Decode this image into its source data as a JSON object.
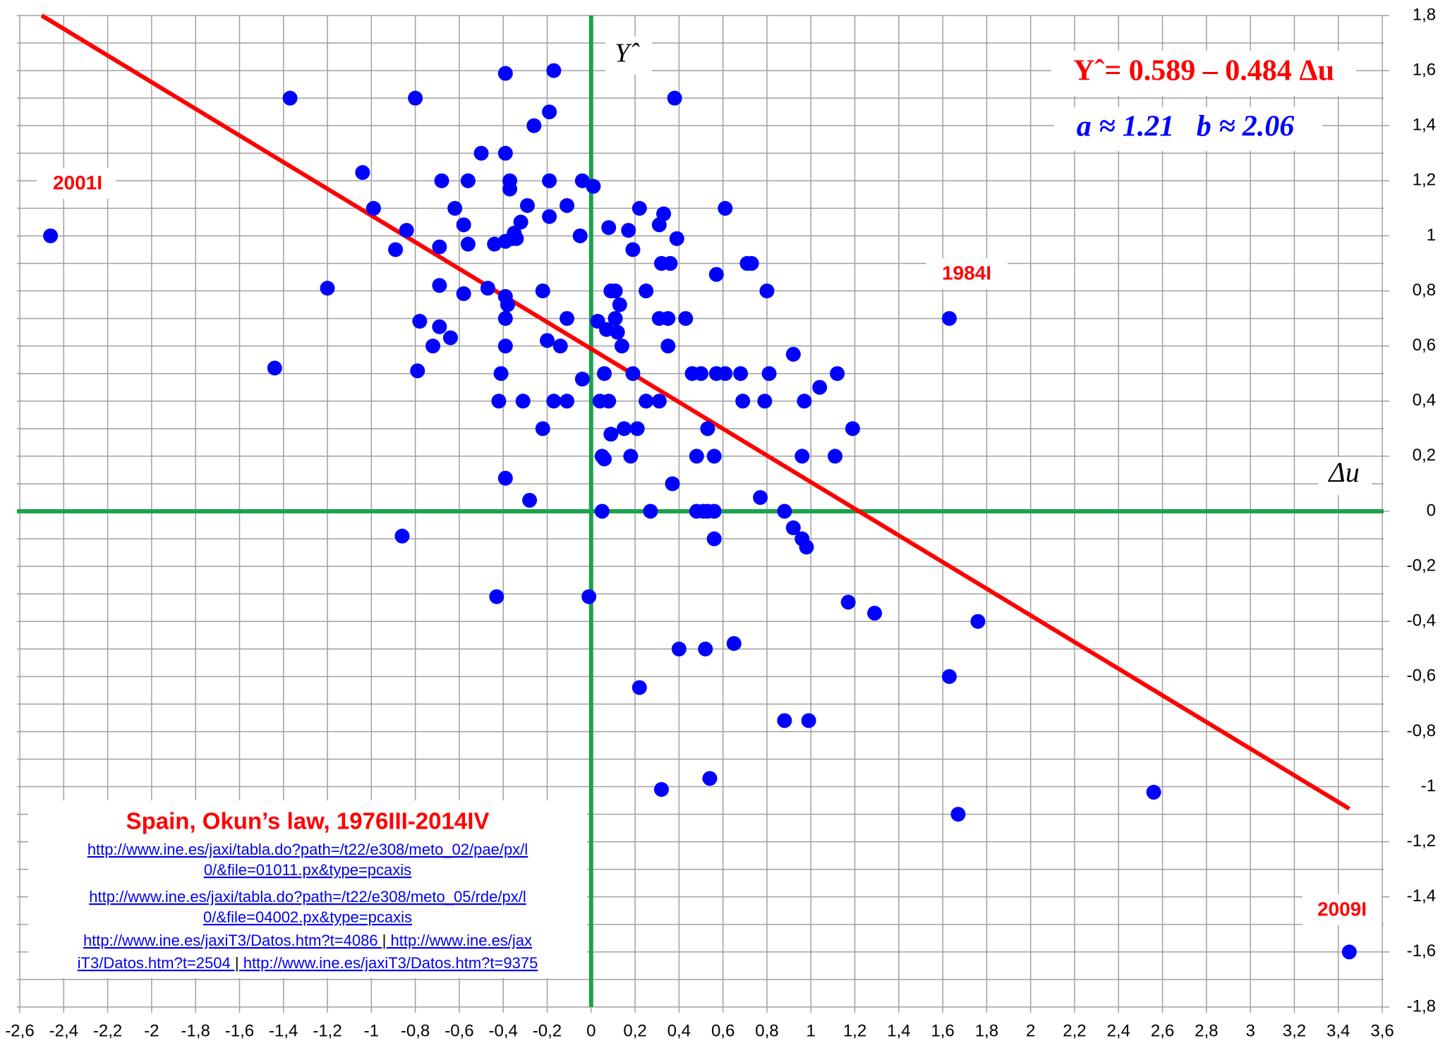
{
  "chart_data": {
    "type": "scatter",
    "xlabel": "Δu",
    "ylabel": "Yˆ",
    "equation": "Yˆ= 0.589 – 0.484 Δu",
    "params": "a ≈ 1.21   b ≈ 2.06",
    "title": "Spain, Okun’s law, 1976III-2014IV",
    "links": [
      [
        "http://www.ine.es/jaxi/tabla.do?path=/t22/e308/meto_02/pae/px/l"
      ],
      [
        "0/&file=01011.px&type=pcaxis"
      ],
      [
        "http://www.ine.es/jaxi/tabla.do?path=/t22/e308/meto_05/rde/px/l"
      ],
      [
        "0/&file=04002.px&type=pcaxis"
      ],
      [
        "http://www.ine.es/jaxiT3/Datos.htm?t=4086",
        "http://www.ine.es/jax"
      ],
      [
        "iT3/Datos.htm?t=2504",
        "http://www.ine.es/jaxiT3/Datos.htm?t=9375"
      ]
    ],
    "annotations": [
      "2001I",
      "1984I",
      "2009I"
    ],
    "color": "#0000ff",
    "axis_color": "#1aa34a",
    "grid": true,
    "xlim": [
      -2.6,
      3.6
    ],
    "ylim": [
      -1.8,
      1.8
    ],
    "xticks": [
      {
        "value": -2.6,
        "label": "-2,6"
      },
      {
        "value": -2.4,
        "label": "-2,4"
      },
      {
        "value": -2.2,
        "label": "-2,2"
      },
      -2,
      {
        "value": -1.8,
        "label": "-1,8"
      },
      {
        "value": -1.6,
        "label": "-1,6"
      },
      {
        "value": -1.4,
        "label": "-1,4"
      },
      {
        "value": -1.2,
        "label": "-1,2"
      },
      -1,
      {
        "value": -0.8,
        "label": "-0,8"
      },
      {
        "value": -0.6,
        "label": "-0,6"
      },
      {
        "value": -0.4,
        "label": "-0,4"
      },
      {
        "value": -0.2,
        "label": "-0,2"
      },
      0,
      {
        "value": 0.2,
        "label": "0,2"
      },
      {
        "value": 0.4,
        "label": "0,4"
      },
      {
        "value": 0.6,
        "label": "0,6"
      },
      {
        "value": 0.8,
        "label": "0,8"
      },
      1,
      {
        "value": 1.2,
        "label": "1,2"
      },
      {
        "value": 1.4,
        "label": "1,4"
      },
      {
        "value": 1.6,
        "label": "1,6"
      },
      {
        "value": 1.8,
        "label": "1,8"
      },
      2,
      {
        "value": 2.2,
        "label": "2,2"
      },
      {
        "value": 2.4,
        "label": "2,4"
      },
      {
        "value": 2.6,
        "label": "2,6"
      },
      {
        "value": 2.8,
        "label": "2,8"
      },
      3,
      {
        "value": 3.2,
        "label": "3,2"
      },
      {
        "value": 3.4,
        "label": "3,4"
      },
      {
        "value": 3.6,
        "label": "3,6"
      }
    ],
    "yticks": [
      {
        "value": -1.8,
        "label": "-1,8"
      },
      {
        "value": -1.6,
        "label": "-1,6"
      },
      {
        "value": -1.4,
        "label": "-1,4"
      },
      {
        "value": -1.2,
        "label": "-1,2"
      },
      -1,
      {
        "value": -0.8,
        "label": "-0,8"
      },
      {
        "value": -0.6,
        "label": "-0,6"
      },
      {
        "value": -0.4,
        "label": "-0,4"
      },
      {
        "value": -0.2,
        "label": "-0,2"
      },
      0,
      {
        "value": 0.2,
        "label": "0,2"
      },
      {
        "value": 0.4,
        "label": "0,4"
      },
      {
        "value": 0.6,
        "label": "0,6"
      },
      {
        "value": 0.8,
        "label": "0,8"
      },
      1,
      {
        "value": 1.2,
        "label": "1,2"
      },
      {
        "value": 1.4,
        "label": "1,4"
      },
      {
        "value": 1.6,
        "label": "1,6"
      },
      {
        "value": 1.8,
        "label": "1,8"
      }
    ],
    "yminor": [
      -1.7,
      -1.5,
      -1.3,
      -1.1,
      -0.9,
      -0.7,
      -0.5,
      -0.3,
      -0.1,
      0.1,
      0.3,
      0.5,
      0.7,
      0.9,
      1.1,
      1.3,
      1.5,
      1.7
    ],
    "fit": {
      "color": "#ff0000",
      "x": [
        -2.5,
        3.45
      ],
      "values": [
        1.8,
        -1.08
      ]
    },
    "x": [
      -2.46,
      -1.37,
      -1.44,
      -1.2,
      -1.04,
      -0.99,
      -0.89,
      -0.84,
      -0.86,
      -0.8,
      -0.78,
      -0.79,
      -0.72,
      -0.69,
      -0.69,
      -0.69,
      -0.68,
      -0.64,
      -0.62,
      -0.58,
      -0.56,
      -0.58,
      -0.56,
      -0.5,
      -0.47,
      -0.44,
      -0.43,
      -0.42,
      -0.41,
      -0.39,
      -0.39,
      -0.39,
      -0.39,
      -0.38,
      -0.39,
      -0.39,
      -0.39,
      -0.37,
      -0.37,
      -0.36,
      -0.35,
      -0.34,
      -0.32,
      -0.31,
      -0.29,
      -0.28,
      -0.26,
      -0.22,
      -0.22,
      -0.2,
      -0.19,
      -0.19,
      -0.19,
      -0.17,
      -0.17,
      -0.14,
      -0.11,
      -0.11,
      -0.11,
      -0.05,
      -0.04,
      -0.04,
      -0.01,
      0.01,
      0.03,
      0.04,
      0.05,
      0.05,
      0.06,
      0.06,
      0.07,
      0.08,
      0.08,
      0.09,
      0.09,
      0.11,
      0.11,
      0.12,
      0.13,
      0.14,
      0.15,
      0.17,
      0.18,
      0.19,
      0.19,
      0.21,
      0.22,
      0.22,
      0.25,
      0.25,
      0.27,
      0.31,
      0.31,
      0.31,
      0.32,
      0.33,
      0.32,
      0.35,
      0.35,
      0.36,
      0.37,
      0.38,
      0.39,
      0.4,
      0.43,
      0.46,
      0.48,
      0.48,
      0.5,
      0.51,
      0.52,
      0.53,
      0.54,
      0.53,
      0.56,
      0.56,
      0.56,
      0.57,
      0.57,
      0.61,
      0.61,
      0.65,
      0.68,
      0.69,
      0.71,
      0.73,
      0.77,
      0.79,
      0.8,
      0.81,
      0.88,
      0.88,
      0.92,
      0.92,
      0.96,
      0.96,
      0.97,
      0.98,
      0.99,
      1.04,
      1.11,
      1.12,
      1.17,
      1.19,
      1.29,
      1.63,
      1.63,
      1.67,
      1.76,
      2.56,
      3.45
    ],
    "values": [
      1.0,
      1.5,
      0.52,
      0.81,
      1.23,
      1.1,
      0.95,
      1.02,
      -0.09,
      1.5,
      0.69,
      0.51,
      0.6,
      0.67,
      0.96,
      0.82,
      1.2,
      0.63,
      1.1,
      1.04,
      0.97,
      0.79,
      1.2,
      1.3,
      0.81,
      0.97,
      -0.31,
      0.4,
      0.5,
      0.98,
      1.3,
      0.78,
      1.59,
      0.75,
      0.7,
      0.6,
      0.12,
      1.2,
      1.17,
      0.99,
      1.01,
      0.99,
      1.05,
      0.4,
      1.11,
      0.04,
      1.4,
      0.3,
      0.8,
      0.62,
      1.2,
      1.45,
      1.07,
      1.6,
      0.4,
      0.6,
      1.11,
      0.7,
      0.4,
      1.0,
      1.2,
      0.48,
      -0.31,
      1.18,
      0.69,
      0.4,
      0.2,
      0.0,
      0.19,
      0.5,
      0.66,
      1.03,
      0.4,
      0.28,
      0.8,
      0.8,
      0.7,
      0.65,
      0.75,
      0.6,
      0.3,
      1.02,
      0.2,
      0.95,
      0.5,
      0.3,
      -0.64,
      1.1,
      0.8,
      0.4,
      0.0,
      1.04,
      0.7,
      0.4,
      -1.01,
      1.08,
      0.9,
      0.7,
      0.6,
      0.9,
      0.1,
      1.5,
      0.99,
      -0.5,
      0.7,
      0.5,
      0.2,
      0.0,
      0.5,
      0.0,
      -0.5,
      0.3,
      -0.97,
      0.0,
      0.2,
      0.0,
      -0.1,
      0.5,
      0.86,
      0.5,
      1.1,
      -0.48,
      0.5,
      0.4,
      0.9,
      0.9,
      0.05,
      0.4,
      0.8,
      0.5,
      0.0,
      -0.76,
      -0.06,
      0.57,
      0.2,
      -0.1,
      0.4,
      -0.13,
      -0.76,
      0.45,
      0.2,
      0.5,
      -0.33,
      0.3,
      -0.37,
      0.7,
      -0.6,
      -1.1,
      -0.4,
      -1.02,
      -1.6
    ]
  }
}
